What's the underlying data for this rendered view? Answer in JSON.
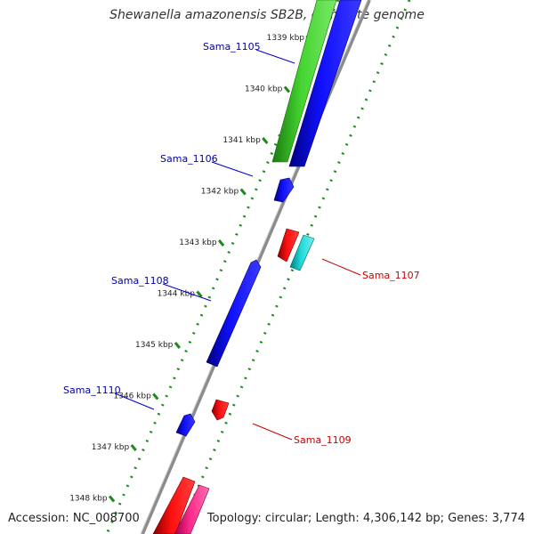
{
  "title": "Shewanella amazonensis SB2B, complete genome",
  "footer": {
    "accession": "Accession: NC_008700",
    "topology": "Topology: circular; Length: 4,306,142 bp; Genes: 3,774"
  },
  "colors": {
    "backbone": "#8c8c8c",
    "forward_gene": "#0a0ae6",
    "reverse_gene": "#e61010",
    "rrna": "#3ccc28",
    "trna": "#22cccc",
    "misc": "#ff2a8c",
    "tick": "#1e8a1e",
    "forward_label": "#0000aa",
    "reverse_label": "#cc0000"
  },
  "ticks": [
    {
      "label": "1339 kbp"
    },
    {
      "label": "1340 kbp"
    },
    {
      "label": "1341 kbp"
    },
    {
      "label": "1342 kbp"
    },
    {
      "label": "1343 kbp"
    },
    {
      "label": "1344 kbp"
    },
    {
      "label": "1345 kbp"
    },
    {
      "label": "1346 kbp"
    },
    {
      "label": "1347 kbp"
    },
    {
      "label": "1348 kbp"
    }
  ],
  "gene_labels": {
    "sama_1105": "Sama_1105",
    "sama_1106": "Sama_1106",
    "sama_1107": "Sama_1107",
    "sama_1108": "Sama_1108",
    "sama_1109": "Sama_1109",
    "sama_1110": "Sama_1110"
  }
}
